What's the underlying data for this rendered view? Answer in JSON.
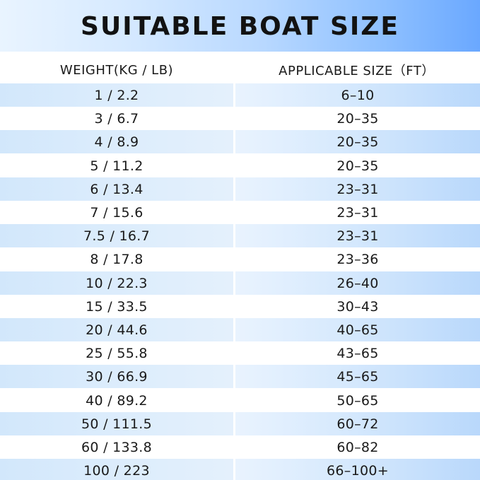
{
  "title": "SUITABLE BOAT SIZE",
  "columns": {
    "weight": "WEIGHT(KG / LB)",
    "size": "APPLICABLE SIZE（FT）"
  },
  "colors": {
    "banner_left": "#e9f4ff",
    "banner_right": "#6aa8ff",
    "row_shade": "#d6e9fd"
  },
  "rows": [
    {
      "weight": "1 / 2.2",
      "size": "6–10"
    },
    {
      "weight": "3 / 6.7",
      "size": "20–35"
    },
    {
      "weight": "4 / 8.9",
      "size": "20–35"
    },
    {
      "weight": "5 / 11.2",
      "size": "20–35"
    },
    {
      "weight": "6 / 13.4",
      "size": "23–31"
    },
    {
      "weight": "7 / 15.6",
      "size": "23–31"
    },
    {
      "weight": "7.5 / 16.7",
      "size": "23–31"
    },
    {
      "weight": "8 / 17.8",
      "size": "23–36"
    },
    {
      "weight": "10 / 22.3",
      "size": "26–40"
    },
    {
      "weight": "15 / 33.5",
      "size": "30–43"
    },
    {
      "weight": "20 / 44.6",
      "size": "40–65"
    },
    {
      "weight": "25 / 55.8",
      "size": "43–65"
    },
    {
      "weight": "30 / 66.9",
      "size": "45–65"
    },
    {
      "weight": "40 / 89.2",
      "size": "50–65"
    },
    {
      "weight": "50 / 111.5",
      "size": "60–72"
    },
    {
      "weight": "60 / 133.8",
      "size": "60–82"
    },
    {
      "weight": "100 / 223",
      "size": "66–100+"
    }
  ]
}
